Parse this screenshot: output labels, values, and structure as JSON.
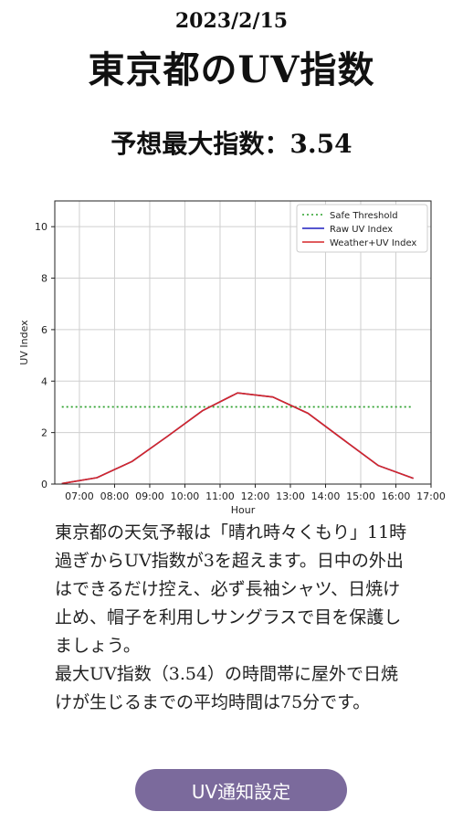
{
  "header": {
    "date": "2023/2/15",
    "title": "東京都のUV指数",
    "max_index_line": "予想最大指数：3.54"
  },
  "chart_data": {
    "type": "line",
    "xlabel": "Hour",
    "ylabel": "UV Index",
    "x_tick_labels": [
      "07:00",
      "08:00",
      "09:00",
      "10:00",
      "11:00",
      "12:00",
      "13:00",
      "14:00",
      "15:00",
      "16:00",
      "17:00"
    ],
    "x_range_hours": [
      6.3,
      17.0
    ],
    "ylim": [
      0,
      11
    ],
    "y_ticks": [
      0,
      2,
      4,
      6,
      8,
      10
    ],
    "grid": true,
    "legend_position": "top-right",
    "series": [
      {
        "name": "Safe Threshold",
        "style": "dotted",
        "color": "#2ca02c",
        "x": [
          6.5,
          16.5
        ],
        "values": [
          3,
          3
        ]
      },
      {
        "name": "Raw UV Index",
        "style": "solid",
        "color": "#1f1fbf",
        "x": [
          6.5,
          7.5,
          8.5,
          9.5,
          10.5,
          11.5,
          12.5,
          13.5,
          14.5,
          15.5,
          16.5
        ],
        "values": [
          0.02,
          0.25,
          0.88,
          1.85,
          2.85,
          3.54,
          3.38,
          2.75,
          1.73,
          0.72,
          0.22
        ]
      },
      {
        "name": "Weather+UV Index",
        "style": "solid",
        "color": "#d62728",
        "x": [
          6.5,
          7.5,
          8.5,
          9.5,
          10.5,
          11.5,
          12.5,
          13.5,
          14.5,
          15.5,
          16.5
        ],
        "values": [
          0.02,
          0.25,
          0.88,
          1.85,
          2.85,
          3.54,
          3.38,
          2.75,
          1.73,
          0.72,
          0.22
        ]
      }
    ]
  },
  "description": {
    "paragraph1": "東京都の天気予報は「晴れ時々くもり」11時過ぎからUV指数が3を超えます。日中の外出はできるだけ控え、必ず長袖シャツ、日焼け止め、帽子を利用しサングラスで目を保護しましょう。",
    "paragraph2": "最大UV指数（3.54）の時間帯に屋外で日焼けが生じるまでの平均時間は75分です。"
  },
  "button": {
    "label": "UV通知設定"
  }
}
